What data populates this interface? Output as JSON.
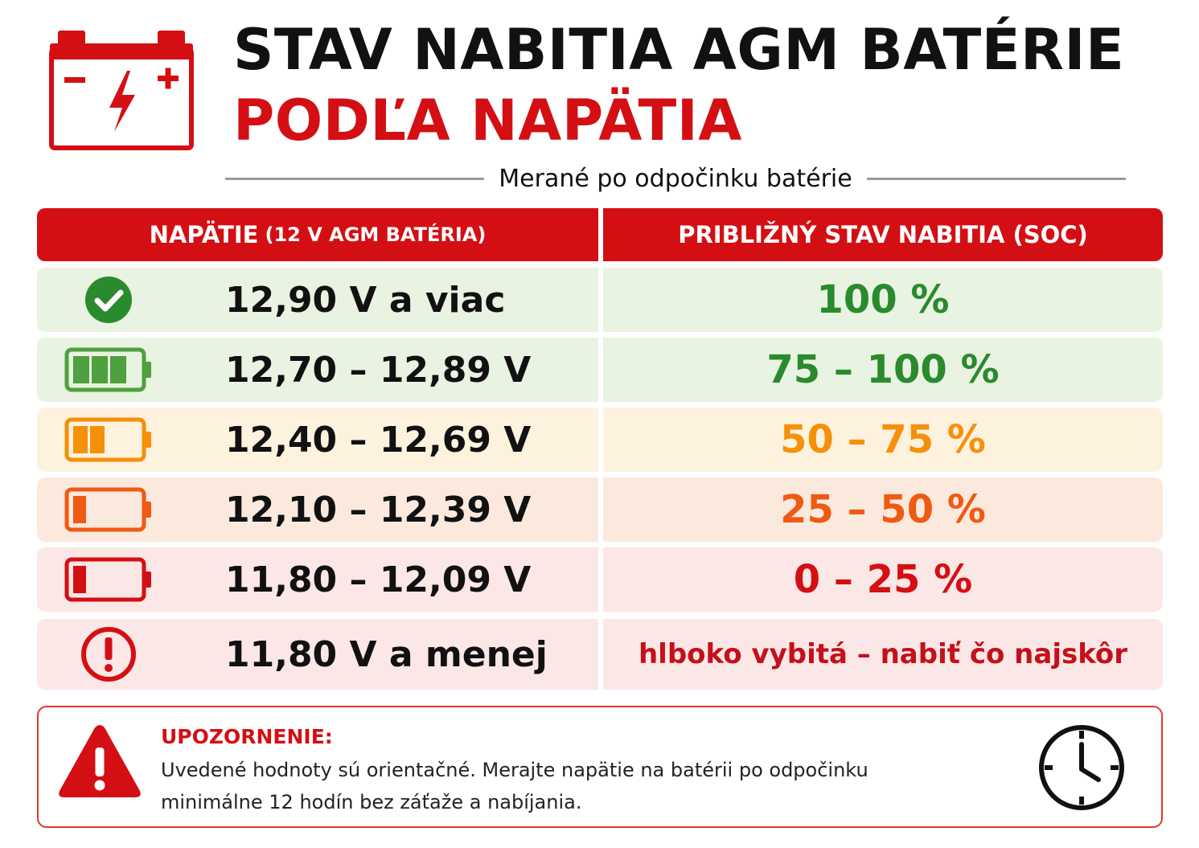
{
  "header": {
    "icon": "car-battery-icon",
    "title_line1": "STAV NABITIA AGM BATÉRIE",
    "title_line2": "PODĽA NAPÄTIA",
    "subtitle": "Merané po odpočinku batérie"
  },
  "table": {
    "col1_label": "NAPÄTIE",
    "col1_sublabel": "(12 V AGM BATÉRIA)",
    "col2_label": "PRIBLIŽNÝ STAV NABITIA (SOC)",
    "rows": [
      {
        "icon": "check-circle-icon",
        "voltage": "12,90 V a viac",
        "soc": "100 %",
        "soc_color": "#2a8a2e",
        "bg": "#e9f3e1"
      },
      {
        "icon": "battery-full-icon",
        "voltage": "12,70 – 12,89 V",
        "soc": "75 – 100 %",
        "soc_color": "#2a8a2e",
        "bg": "#e9f3e1"
      },
      {
        "icon": "battery-half-icon",
        "voltage": "12,40 – 12,69 V",
        "soc": "50 – 75 %",
        "soc_color": "#f5900a",
        "bg": "#fdf2de"
      },
      {
        "icon": "battery-low-icon",
        "voltage": "12,10 – 12,39 V",
        "soc": "25 – 50 %",
        "soc_color": "#ef5a13",
        "bg": "#fce9de"
      },
      {
        "icon": "battery-critical-icon",
        "voltage": "11,80 – 12,09 V",
        "soc": "0 – 25 %",
        "soc_color": "#d40f14",
        "bg": "#fbe7e6"
      },
      {
        "icon": "exclamation-circle-icon",
        "voltage": "11,80 V a menej",
        "soc": "hlboko vybitá – nabiť čo najskôr",
        "soc_color": "#c4101a",
        "bg": "#fbe7e6"
      }
    ]
  },
  "warning": {
    "icon": "warning-triangle-icon",
    "title": "UPOZORNENIE:",
    "text_line1": "Uvedené hodnoty sú orientačné. Merajte napätie na batérii po odpočinku",
    "text_line2": "minimálne 12 hodín bez záťaže a nabíjania.",
    "clock_icon": "clock-icon"
  },
  "colors": {
    "accent_red": "#d40f14",
    "green": "#2a8a2e",
    "yellow": "#f5900a",
    "orange": "#ef5a13"
  }
}
